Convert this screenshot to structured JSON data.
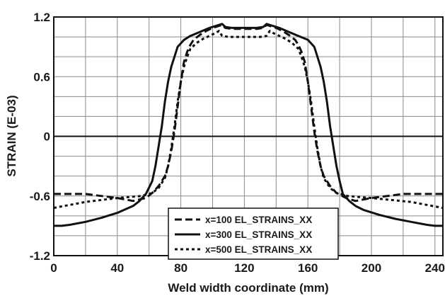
{
  "chart_data": {
    "type": "line",
    "title": "",
    "xlabel": "Weld width coordinate (mm)",
    "ylabel": "STRAIN (E-03)",
    "xlim": [
      0,
      245
    ],
    "ylim": [
      -1.2,
      1.2
    ],
    "x_ticks": [
      0,
      40,
      80,
      120,
      160,
      200,
      240
    ],
    "y_ticks": [
      -1.2,
      -0.6,
      0,
      0.6,
      1.2
    ],
    "x_tick_labels": [
      "0",
      "40",
      "80",
      "120",
      "160",
      "200",
      "240"
    ],
    "y_tick_labels": [
      "-1.2",
      "-0.6",
      "0",
      "0.6",
      "1.2"
    ],
    "grid": true,
    "legend_position": "bottom-center",
    "series": [
      {
        "name": "x=100 EL_STRAINS_XX",
        "style": "dashed",
        "color": "#111111",
        "x": [
          0,
          20,
          40,
          50,
          58,
          62,
          66,
          70,
          72,
          74,
          76,
          78,
          80,
          82,
          84,
          86,
          88,
          92,
          96,
          100,
          104,
          106,
          108,
          112,
          120,
          128,
          132,
          134,
          136,
          140,
          144,
          148,
          152,
          154,
          156,
          158,
          160,
          162,
          164,
          166,
          168,
          170,
          174,
          178,
          184,
          190,
          200,
          220,
          245
        ],
        "y": [
          -0.58,
          -0.58,
          -0.62,
          -0.65,
          -0.62,
          -0.57,
          -0.5,
          -0.4,
          -0.3,
          -0.15,
          0.05,
          0.3,
          0.55,
          0.75,
          0.85,
          0.92,
          0.97,
          1.02,
          1.06,
          1.09,
          1.11,
          1.12,
          1.09,
          1.08,
          1.08,
          1.08,
          1.09,
          1.12,
          1.11,
          1.09,
          1.06,
          1.02,
          0.97,
          0.92,
          0.85,
          0.75,
          0.55,
          0.3,
          0.05,
          -0.15,
          -0.3,
          -0.4,
          -0.5,
          -0.57,
          -0.62,
          -0.65,
          -0.62,
          -0.58,
          -0.58
        ]
      },
      {
        "name": "x=300 EL_STRAINS_XX",
        "style": "solid",
        "color": "#111111",
        "x": [
          0,
          5,
          10,
          20,
          30,
          40,
          50,
          54,
          58,
          62,
          64,
          66,
          68,
          70,
          72,
          74,
          76,
          78,
          82,
          86,
          92,
          98,
          104,
          106,
          108,
          112,
          120,
          128,
          132,
          134,
          136,
          142,
          148,
          154,
          160,
          164,
          166,
          168,
          170,
          172,
          174,
          176,
          178,
          180,
          182,
          186,
          190,
          195,
          205,
          215,
          225,
          235,
          240,
          245
        ],
        "y": [
          -0.9,
          -0.9,
          -0.89,
          -0.86,
          -0.82,
          -0.77,
          -0.7,
          -0.65,
          -0.58,
          -0.45,
          -0.3,
          -0.1,
          0.1,
          0.35,
          0.55,
          0.7,
          0.8,
          0.9,
          0.97,
          1.01,
          1.05,
          1.09,
          1.12,
          1.13,
          1.1,
          1.09,
          1.09,
          1.09,
          1.1,
          1.13,
          1.12,
          1.09,
          1.05,
          1.01,
          0.97,
          0.9,
          0.8,
          0.7,
          0.55,
          0.35,
          0.1,
          -0.1,
          -0.3,
          -0.45,
          -0.58,
          -0.65,
          -0.7,
          -0.74,
          -0.79,
          -0.83,
          -0.86,
          -0.89,
          -0.9,
          -0.9
        ]
      },
      {
        "name": "x=500 EL_STRAINS_XX",
        "style": "dotted",
        "color": "#111111",
        "x": [
          0,
          20,
          40,
          55,
          62,
          66,
          70,
          72,
          74,
          76,
          78,
          80,
          82,
          84,
          86,
          90,
          94,
          98,
          102,
          104,
          106,
          110,
          120,
          130,
          134,
          136,
          138,
          142,
          146,
          150,
          154,
          156,
          158,
          160,
          162,
          164,
          166,
          168,
          170,
          174,
          178,
          185,
          200,
          225,
          245
        ],
        "y": [
          -0.72,
          -0.66,
          -0.62,
          -0.6,
          -0.57,
          -0.52,
          -0.42,
          -0.3,
          -0.12,
          0.1,
          0.35,
          0.55,
          0.7,
          0.8,
          0.88,
          0.94,
          0.98,
          1.01,
          1.04,
          1.06,
          1.01,
          1.0,
          1.0,
          1.0,
          1.01,
          1.06,
          1.04,
          1.01,
          0.98,
          0.94,
          0.88,
          0.8,
          0.7,
          0.55,
          0.35,
          0.1,
          -0.12,
          -0.3,
          -0.42,
          -0.52,
          -0.57,
          -0.6,
          -0.62,
          -0.66,
          -0.72
        ]
      }
    ]
  }
}
